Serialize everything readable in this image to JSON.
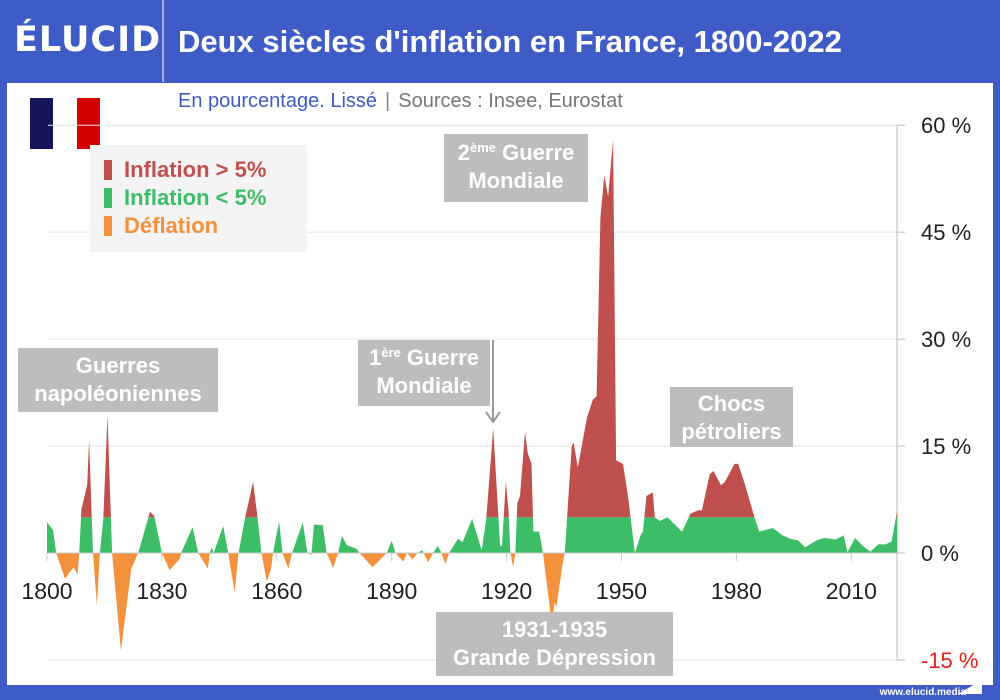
{
  "header": {
    "logo": "ÉLUCID",
    "title": "Deux siècles d'inflation en France, 1800-2022"
  },
  "subtitle": {
    "main": "En pourcentage. Lissé",
    "separator": "|",
    "sources": "Sources : Insee, Eurostat"
  },
  "legend": [
    {
      "label": "Inflation > 5%",
      "color": "#c0504d"
    },
    {
      "label": "Inflation < 5%",
      "color": "#3dbd66"
    },
    {
      "label": "Déflation",
      "color": "#f3913c"
    }
  ],
  "annotations": {
    "napoleon": {
      "line1": "Guerres",
      "line2": "napoléoniennes"
    },
    "ww1": {
      "num": "1",
      "sup": "ère",
      "line1": " Guerre",
      "line2": "Mondiale"
    },
    "ww2": {
      "num": "2",
      "sup": "ème",
      "line1": " Guerre",
      "line2": "Mondiale"
    },
    "oil": {
      "line1": "Chocs",
      "line2": "pétroliers"
    },
    "depression": {
      "line1": "1931-1935",
      "line2": "Grande Dépression"
    }
  },
  "footer": "www.elucid.media",
  "flag_colors": [
    "#14145a",
    "#ffffff",
    "#d40000"
  ],
  "chart_data": {
    "type": "area",
    "title": "Deux siècles d'inflation en France, 1800-2022",
    "ylabel": "%",
    "xlim": [
      1800,
      2022
    ],
    "ylim": [
      -15,
      60
    ],
    "threshold": 5,
    "xticks": [
      "1800",
      "1830",
      "1860",
      "1890",
      "1920",
      "1950",
      "1980",
      "2010"
    ],
    "yticks": [
      {
        "value": 60,
        "label": "60 %"
      },
      {
        "value": 45,
        "label": "45 %"
      },
      {
        "value": 30,
        "label": "30 %"
      },
      {
        "value": 15,
        "label": "15 %"
      },
      {
        "value": 0,
        "label": "0 %"
      },
      {
        "value": -15,
        "label": "-15 %"
      }
    ],
    "x": [
      1800,
      1801.6,
      1802.4,
      1804.7,
      1806.9,
      1808,
      1808.4,
      1809,
      1810.5,
      1811,
      1812,
      1813,
      1813.8,
      1814.7,
      1815.8,
      1817,
      1819.3,
      1822,
      1823.8,
      1826.9,
      1828,
      1830,
      1832,
      1834.7,
      1835,
      1838,
      1839.5,
      1842,
      1842.5,
      1843,
      1843.5,
      1846,
      1847.3,
      1849,
      1850,
      1851.7,
      1853.8,
      1855,
      1856,
      1857.4,
      1858.5,
      1859,
      1860.6,
      1861.5,
      1863,
      1864,
      1866.8,
      1868,
      1869,
      1869.7,
      1872,
      1873,
      1874.7,
      1876,
      1877,
      1878.3,
      1880.8,
      1881.6,
      1885,
      1888.7,
      1890,
      1891,
      1893,
      1894,
      1895.5,
      1896.7,
      1898,
      1899.5,
      1900.8,
      1902,
      1903,
      1904,
      1905,
      1907.3,
      1908.5,
      1911,
      1913.5,
      1914.7,
      1916.5,
      1918.3,
      1918.8,
      1919.8,
      1920.5,
      1921,
      1921.7,
      1922.3,
      1922.8,
      1923.5,
      1924.8,
      1925.5,
      1926.5,
      1927,
      1928.5,
      1929.5,
      1931.8,
      1932.5,
      1933,
      1934.5,
      1935.2,
      1937,
      1937.5,
      1938.6,
      1941,
      1942.5,
      1943.5,
      1944.5,
      1945.5,
      1946.5,
      1947.8,
      1948.6,
      1950.4,
      1951.7,
      1953.5,
      1955,
      1955.6,
      1956.5,
      1958.2,
      1958.7,
      1960,
      1962,
      1965.8,
      1968,
      1970,
      1971,
      1973,
      1974,
      1976,
      1977,
      1979.5,
      1980.5,
      1982,
      1985,
      1986,
      1989.5,
      1992,
      1994,
      1996,
      1998,
      2001,
      2003,
      2006,
      2008,
      2009,
      2011,
      2013,
      2015,
      2017,
      2019,
      2020.5,
      2022
    ],
    "y": [
      4.3,
      3.2,
      0,
      -3.6,
      -2,
      -3,
      0,
      6.2,
      9.5,
      15.8,
      0,
      -7.3,
      0,
      4.8,
      19.3,
      0,
      -13.7,
      -2.2,
      0,
      5.8,
      5.2,
      0,
      -2.4,
      -0.8,
      0,
      3.6,
      0,
      -2.2,
      0,
      0.8,
      0,
      3.8,
      0,
      -5.5,
      0,
      4.9,
      10,
      4.9,
      0,
      -4,
      -2.2,
      0,
      4.4,
      0,
      -2.2,
      0,
      4.3,
      0,
      -0.3,
      4,
      3.9,
      0,
      -2.1,
      0,
      2.4,
      1.1,
      0.6,
      0,
      -2,
      0,
      1.7,
      0,
      -1.2,
      0,
      -0.9,
      0,
      0.4,
      -1.3,
      0,
      1,
      0,
      -1.5,
      0,
      2,
      1.5,
      4.8,
      0.4,
      4.9,
      17.5,
      1,
      1,
      10,
      6,
      0,
      -2,
      0,
      7,
      8,
      17,
      14,
      12.5,
      3,
      3,
      0,
      -10,
      -7,
      -7.5,
      -2,
      0,
      15,
      15.5,
      12,
      19,
      21.5,
      22,
      47,
      53,
      50,
      58,
      13,
      12.5,
      8,
      0,
      2.5,
      3,
      8,
      8.5,
      5,
      4.5,
      5,
      3,
      5.5,
      6,
      6,
      11,
      11.5,
      9.5,
      10,
      12.5,
      12.5,
      10,
      4.5,
      3,
      3.5,
      2.5,
      2,
      1.8,
      0.8,
      1.8,
      2.1,
      1.9,
      2.5,
      0.1,
      2.1,
      1,
      0.2,
      1.2,
      1.2,
      1.6,
      6
    ]
  }
}
